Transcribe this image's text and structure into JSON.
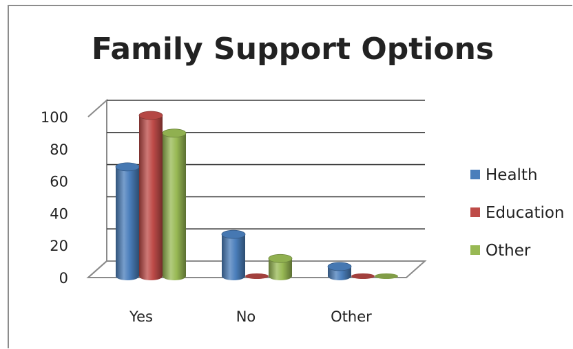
{
  "chart_data": {
    "type": "bar",
    "title": "Family Support Options",
    "categories": [
      "Yes",
      "No",
      "Other"
    ],
    "series": [
      {
        "name": "Health",
        "values": [
          68,
          26,
          6
        ],
        "color": "#4a7ebb"
      },
      {
        "name": "Education",
        "values": [
          100,
          1,
          1
        ],
        "color": "#be4b48"
      },
      {
        "name": "Other",
        "values": [
          89,
          11,
          0
        ],
        "color": "#98b954"
      }
    ],
    "y_ticks": [
      "0",
      "20",
      "40",
      "60",
      "80",
      "100"
    ],
    "ylim": [
      0,
      100
    ],
    "grid": true,
    "legend_position": "right",
    "style": "3d-cylinder"
  }
}
